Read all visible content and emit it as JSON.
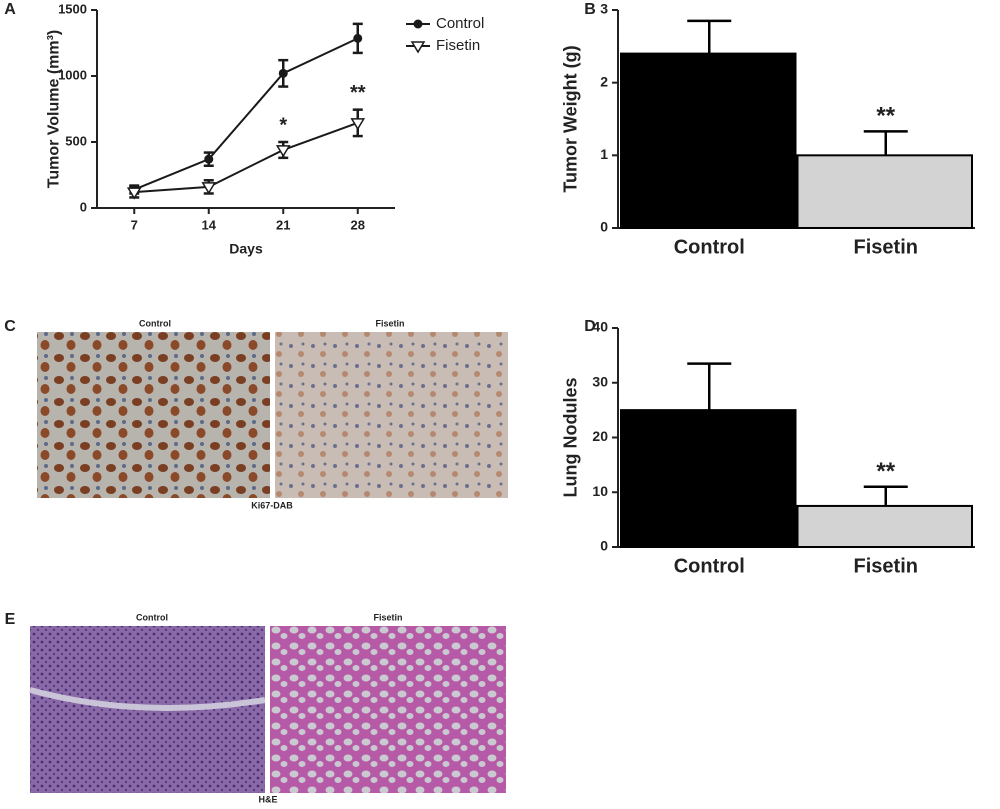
{
  "chart_data": [
    {
      "type": "line",
      "panel_label": "A",
      "x_label": "Days",
      "y_label": "Tumor Volume (mm³)",
      "x": [
        7,
        14,
        21,
        28
      ],
      "xlim": [
        3.5,
        31.5
      ],
      "xticks": [
        7,
        14,
        21,
        28
      ],
      "ylim": [
        0,
        1500
      ],
      "yticks": [
        0,
        500,
        1000,
        1500
      ],
      "legend": "right",
      "series": [
        {
          "name": "Control",
          "color": "#1a1a1a",
          "marker": "circle",
          "values": [
            140,
            370,
            1020,
            1285
          ],
          "errors": [
            30,
            50,
            100,
            110
          ]
        },
        {
          "name": "Fisetin",
          "color": "#1a1a1a",
          "marker": "triangle-down",
          "values": [
            120,
            160,
            440,
            645
          ],
          "errors": [
            40,
            50,
            60,
            100
          ]
        }
      ],
      "annotations": [
        {
          "text": "*",
          "x": 21
        },
        {
          "text": "**",
          "x": 28
        }
      ]
    },
    {
      "type": "bar",
      "panel_label": "B",
      "y_label": "Tumor Weight (g)",
      "categories": [
        "Control",
        "Fisetin"
      ],
      "values": [
        2.4,
        1.0
      ],
      "errors": [
        0.45,
        0.33
      ],
      "colors": [
        "#000000",
        "#d3d3d3"
      ],
      "ylim": [
        0,
        3
      ],
      "yticks": [
        0,
        1,
        2,
        3
      ],
      "annotations": [
        {
          "text": "**",
          "category": 1
        }
      ]
    },
    {
      "type": "bar",
      "panel_label": "D",
      "y_label": "Lung Nodules",
      "categories": [
        "Control",
        "Fisetin"
      ],
      "values": [
        25,
        7.5
      ],
      "errors": [
        8.5,
        3.5
      ],
      "colors": [
        "#000000",
        "#d3d3d3"
      ],
      "ylim": [
        0,
        40
      ],
      "yticks": [
        0,
        10,
        20,
        30,
        40
      ],
      "annotations": [
        {
          "text": "**",
          "category": 1
        }
      ]
    }
  ],
  "micrographs": [
    {
      "panel_label": "C",
      "labels": [
        "Control",
        "Fisetin"
      ],
      "caption": "Ki67-DAB"
    },
    {
      "panel_label": "E",
      "labels": [
        "Control",
        "Fisetin"
      ],
      "caption": "H&E"
    }
  ]
}
